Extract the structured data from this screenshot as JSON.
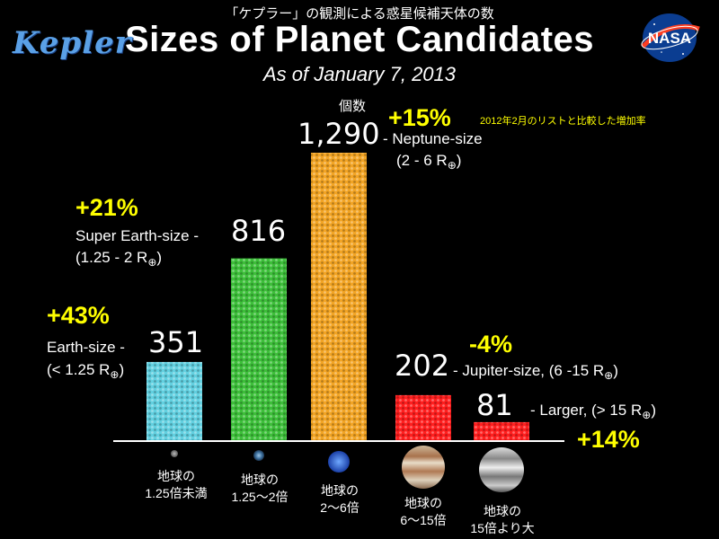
{
  "header": {
    "jp_title": "「ケプラー」の観測による惑星候補天体の数",
    "title": "Sizes of Planet Candidates",
    "subtitle": "As of January 7, 2013",
    "logo_left": "Kepler",
    "logo_right": "NASA"
  },
  "annotations": {
    "count_header": "個数",
    "increase_note": "2012年2月のリストと比較した増加率"
  },
  "colors": {
    "earth": "#62d0e0",
    "super_earth": "#3dbf3a",
    "neptune": "#f2a424",
    "jupiter": "#ff1f1f",
    "larger": "#ff1f1f",
    "highlight": "#ffff00"
  },
  "chart_data": {
    "type": "bar",
    "categories": [
      "地球の\n1.25倍未満",
      "地球の\n1.25〜2倍",
      "地球の\n2〜6倍",
      "地球の\n6〜15倍",
      "地球の\n15倍より大"
    ],
    "values": [
      351,
      816,
      1290,
      202,
      81
    ],
    "value_labels": [
      "351",
      "816",
      "1,290",
      "202",
      "81"
    ],
    "size_labels": [
      "Earth-size -",
      "Super Earth-size -",
      "- Neptune-size",
      "- Jupiter-size, (6 -15 R",
      "- Larger, (> 15 R"
    ],
    "range_labels": [
      "(< 1.25 R",
      "(1.25 - 2 R",
      "(2 - 6 R",
      "",
      ""
    ],
    "range_close": ")",
    "increase": [
      "+43%",
      "+21%",
      "+15%",
      "-4%",
      "+14%"
    ],
    "ylim": [
      0,
      1290
    ]
  }
}
